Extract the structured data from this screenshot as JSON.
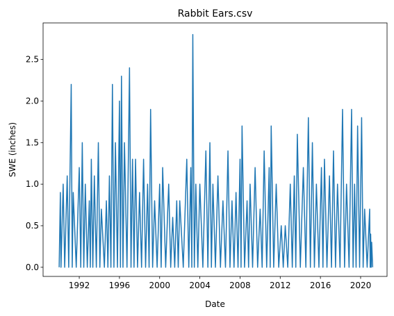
{
  "chart_data": {
    "type": "line",
    "title": "Rabbit Ears.csv",
    "xlabel": "Date",
    "ylabel": "SWE (inches)",
    "color": "#1f77b4",
    "x": [
      1990.0,
      1990.08,
      1990.12,
      1990.18,
      1990.4,
      1990.55,
      1990.8,
      1990.95,
      1991.2,
      1991.3,
      1991.4,
      1991.7,
      1992.0,
      1992.15,
      1992.3,
      1992.45,
      1992.6,
      1992.8,
      1993.0,
      1993.1,
      1993.2,
      1993.35,
      1993.5,
      1993.7,
      1993.9,
      1994.05,
      1994.2,
      1994.5,
      1994.7,
      1994.85,
      1995.0,
      1995.15,
      1995.3,
      1995.45,
      1995.6,
      1995.8,
      1996.0,
      1996.1,
      1996.2,
      1996.35,
      1996.5,
      1996.75,
      1997.0,
      1997.15,
      1997.3,
      1997.45,
      1997.6,
      1997.8,
      1998.0,
      1998.2,
      1998.4,
      1998.6,
      1998.8,
      1998.95,
      1999.1,
      1999.3,
      1999.5,
      1999.75,
      2000.0,
      2000.15,
      2000.3,
      2000.6,
      2000.9,
      2001.1,
      2001.3,
      2001.5,
      2001.7,
      2001.85,
      2002.0,
      2002.35,
      2002.7,
      2002.9,
      2003.1,
      2003.2,
      2003.3,
      2003.45,
      2003.6,
      2003.8,
      2004.0,
      2004.3,
      2004.6,
      2004.8,
      2005.0,
      2005.15,
      2005.3,
      2005.55,
      2005.8,
      2006.05,
      2006.3,
      2006.55,
      2006.8,
      2007.0,
      2007.2,
      2007.4,
      2007.6,
      2007.8,
      2008.0,
      2008.1,
      2008.2,
      2008.45,
      2008.7,
      2008.85,
      2009.0,
      2009.25,
      2009.5,
      2009.75,
      2010.0,
      2010.2,
      2010.4,
      2010.65,
      2010.9,
      2011.0,
      2011.1,
      2011.35,
      2011.6,
      2011.85,
      2012.1,
      2012.3,
      2012.5,
      2012.75,
      2013.0,
      2013.2,
      2013.4,
      2013.55,
      2013.7,
      2014.0,
      2014.3,
      2014.55,
      2014.8,
      2015.0,
      2015.2,
      2015.4,
      2015.6,
      2015.85,
      2016.1,
      2016.25,
      2016.4,
      2016.65,
      2016.9,
      2017.1,
      2017.3,
      2017.5,
      2017.7,
      2017.95,
      2018.2,
      2018.4,
      2018.6,
      2018.85,
      2019.1,
      2019.25,
      2019.4,
      2019.55,
      2019.7,
      2019.9,
      2020.1,
      2020.25,
      2020.4,
      2020.65,
      2020.9,
      2020.95,
      2021.0,
      2021.05,
      2021.1,
      2021.2
    ],
    "values": [
      0,
      0.6,
      0.9,
      0,
      1.0,
      0,
      1.1,
      0,
      2.2,
      0,
      0.9,
      0,
      1.2,
      0,
      1.5,
      0,
      1.0,
      0,
      0.8,
      0,
      1.3,
      0,
      1.1,
      0,
      1.5,
      0,
      0.7,
      0,
      0.8,
      0,
      1.1,
      0,
      2.2,
      0,
      1.5,
      0,
      2.0,
      0,
      2.3,
      0,
      1.5,
      0,
      2.4,
      0,
      1.3,
      0,
      1.3,
      0,
      0.9,
      0,
      1.3,
      0,
      1.0,
      0,
      1.9,
      0,
      0.8,
      0,
      1.0,
      0,
      1.2,
      0,
      1.0,
      0,
      0.6,
      0,
      0.8,
      0,
      0.8,
      0,
      1.3,
      0,
      1.2,
      0,
      2.8,
      0,
      1.0,
      0,
      1.0,
      0,
      1.4,
      0,
      1.5,
      0,
      1.0,
      0,
      1.1,
      0,
      0.8,
      0,
      1.4,
      0,
      0.8,
      0,
      0.9,
      0,
      1.3,
      0,
      1.7,
      0,
      0.8,
      0,
      1.0,
      0,
      1.2,
      0,
      0.7,
      0,
      1.4,
      0,
      1.2,
      0,
      1.7,
      0,
      1.0,
      0,
      0.5,
      0,
      0.5,
      0,
      1.0,
      0,
      1.1,
      0,
      1.6,
      0,
      1.2,
      0,
      1.8,
      0,
      1.5,
      0,
      1.0,
      0,
      1.2,
      0,
      1.3,
      0,
      1.1,
      0,
      1.4,
      0,
      1.0,
      0,
      1.9,
      0,
      1.0,
      0,
      1.9,
      0,
      1.0,
      0,
      1.7,
      0,
      1.8,
      0,
      0.7,
      0,
      0.7,
      0,
      0.4,
      0,
      0.3,
      0
    ],
    "xlim": [
      1988.4,
      2022.63
    ],
    "xticks": [
      1992,
      1996,
      2000,
      2004,
      2008,
      2012,
      2016,
      2020
    ],
    "ylim": [
      -0.11,
      2.94
    ],
    "yticks": [
      {
        "value": 0,
        "label": "0.0"
      },
      0.5,
      {
        "value": 1,
        "label": "1.0"
      },
      1.5,
      {
        "value": 2,
        "label": "2.0"
      },
      2.5
    ]
  }
}
